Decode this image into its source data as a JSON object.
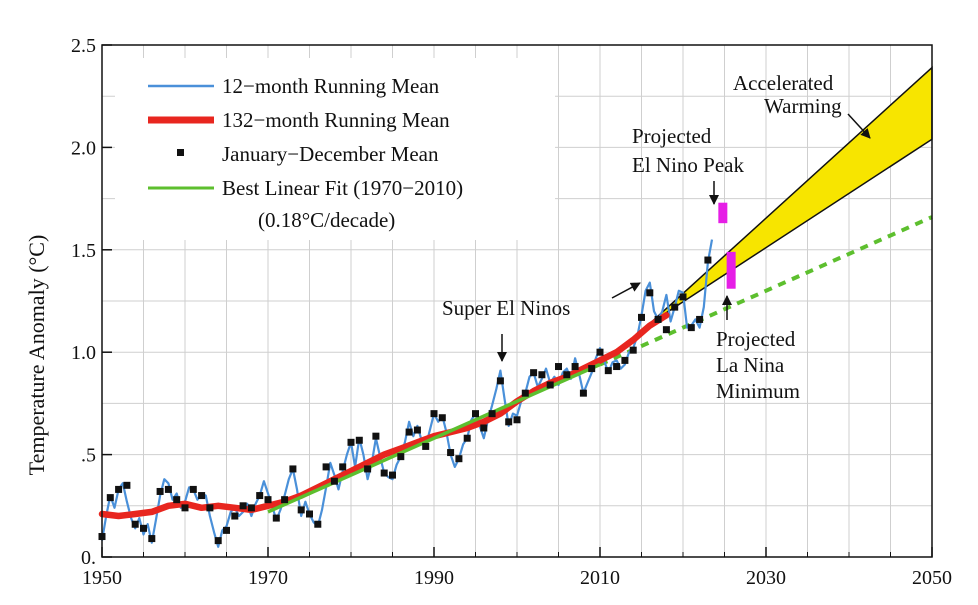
{
  "chart_data": {
    "type": "line",
    "ylabel": "Temperature Anomaly (°C)",
    "xlabel": "",
    "xlim": [
      1950,
      2050
    ],
    "ylim": [
      0,
      2.5
    ],
    "x_ticks": [
      1950,
      1970,
      1990,
      2010,
      2030,
      2050
    ],
    "x_tick_labels": [
      "1950",
      "1970",
      "1990",
      "2010",
      "2030",
      "2050"
    ],
    "y_ticks": [
      0,
      0.5,
      1.0,
      1.5,
      2.0,
      2.5
    ],
    "y_tick_labels": [
      "0.",
      ".5",
      "1.0",
      "1.5",
      "2.0",
      "2.5"
    ],
    "grid": true,
    "legend_position": "top-left",
    "colors": {
      "running12": "#4a90d9",
      "running132": "#e8261f",
      "annual": "#111111",
      "linear_fit": "#5dbf2e",
      "band_fill": "#f7e500",
      "marker": "#e61ee6"
    },
    "legend": [
      {
        "key": "running12",
        "label": "12−month Running Mean"
      },
      {
        "key": "running132",
        "label": "132−month Running Mean"
      },
      {
        "key": "annual",
        "label": "January−December Mean"
      },
      {
        "key": "linear_fit",
        "label": "Best Linear Fit (1970−2010)"
      }
    ],
    "legend_note": "(0.18°C/decade)",
    "series": [
      {
        "name": "12-month Running Mean",
        "key": "running12",
        "x": [
          1950,
          1950.5,
          1951,
          1951.5,
          1952,
          1952.5,
          1953,
          1953.5,
          1954,
          1954.5,
          1955,
          1955.5,
          1956,
          1956.5,
          1957,
          1957.5,
          1958,
          1958.5,
          1959,
          1959.5,
          1960,
          1960.5,
          1961,
          1961.5,
          1962,
          1962.5,
          1963,
          1963.5,
          1964,
          1964.5,
          1965,
          1965.5,
          1966,
          1966.5,
          1967,
          1967.5,
          1968,
          1968.5,
          1969,
          1969.5,
          1970,
          1970.5,
          1971,
          1971.5,
          1972,
          1972.5,
          1973,
          1973.5,
          1974,
          1974.5,
          1975,
          1975.5,
          1976,
          1976.5,
          1977,
          1977.5,
          1978,
          1978.5,
          1979,
          1979.5,
          1980,
          1980.5,
          1981,
          1981.5,
          1982,
          1982.5,
          1983,
          1983.5,
          1984,
          1984.5,
          1985,
          1985.5,
          1986,
          1986.5,
          1987,
          1987.5,
          1988,
          1988.5,
          1989,
          1989.5,
          1990,
          1990.5,
          1991,
          1991.5,
          1992,
          1992.5,
          1993,
          1993.5,
          1994,
          1994.5,
          1995,
          1995.5,
          1996,
          1996.5,
          1997,
          1997.5,
          1998,
          1998.5,
          1999,
          1999.5,
          2000,
          2000.5,
          2001,
          2001.5,
          2002,
          2002.5,
          2003,
          2003.5,
          2004,
          2004.5,
          2005,
          2005.5,
          2006,
          2006.5,
          2007,
          2007.5,
          2008,
          2008.5,
          2009,
          2009.5,
          2010,
          2010.5,
          2011,
          2011.5,
          2012,
          2012.5,
          2013,
          2013.5,
          2014,
          2014.5,
          2015,
          2015.5,
          2016,
          2016.5,
          2017,
          2017.5,
          2018,
          2018.5,
          2019,
          2019.5,
          2020,
          2020.5,
          2021,
          2021.5,
          2022,
          2022.5,
          2023,
          2023.5
        ],
        "values": [
          0.08,
          0.2,
          0.3,
          0.24,
          0.33,
          0.36,
          0.27,
          0.19,
          0.14,
          0.19,
          0.11,
          0.16,
          0.07,
          0.18,
          0.3,
          0.38,
          0.36,
          0.28,
          0.31,
          0.24,
          0.27,
          0.34,
          0.33,
          0.28,
          0.31,
          0.3,
          0.2,
          0.12,
          0.05,
          0.13,
          0.15,
          0.22,
          0.24,
          0.2,
          0.22,
          0.26,
          0.2,
          0.26,
          0.3,
          0.37,
          0.31,
          0.25,
          0.18,
          0.23,
          0.3,
          0.38,
          0.43,
          0.33,
          0.2,
          0.27,
          0.21,
          0.17,
          0.15,
          0.23,
          0.34,
          0.46,
          0.4,
          0.33,
          0.42,
          0.5,
          0.56,
          0.44,
          0.58,
          0.5,
          0.38,
          0.46,
          0.58,
          0.49,
          0.41,
          0.39,
          0.38,
          0.45,
          0.49,
          0.56,
          0.66,
          0.59,
          0.64,
          0.57,
          0.54,
          0.62,
          0.7,
          0.66,
          0.69,
          0.61,
          0.5,
          0.44,
          0.48,
          0.55,
          0.58,
          0.67,
          0.7,
          0.64,
          0.58,
          0.67,
          0.74,
          0.82,
          0.91,
          0.77,
          0.64,
          0.7,
          0.69,
          0.76,
          0.8,
          0.88,
          0.9,
          0.83,
          0.87,
          0.92,
          0.85,
          0.88,
          0.84,
          0.9,
          0.92,
          0.87,
          0.97,
          0.89,
          0.8,
          0.85,
          0.9,
          0.97,
          1.02,
          0.96,
          0.9,
          0.95,
          0.96,
          0.92,
          0.94,
          1.0,
          1.02,
          1.08,
          1.18,
          1.3,
          1.34,
          1.2,
          1.16,
          1.2,
          1.28,
          1.15,
          1.22,
          1.3,
          1.29,
          1.12,
          1.13,
          1.16,
          1.12,
          1.22,
          1.44,
          1.55
        ]
      },
      {
        "name": "132-month Running Mean",
        "key": "running132",
        "x": [
          1950,
          1952,
          1954,
          1956,
          1958,
          1960,
          1962,
          1964,
          1966,
          1968,
          1970,
          1972,
          1974,
          1976,
          1978,
          1980,
          1982,
          1984,
          1986,
          1988,
          1990,
          1992,
          1994,
          1996,
          1998,
          2000,
          2002,
          2004,
          2006,
          2008,
          2010,
          2012,
          2014,
          2016,
          2018
        ],
        "values": [
          0.21,
          0.2,
          0.21,
          0.22,
          0.25,
          0.26,
          0.24,
          0.25,
          0.24,
          0.23,
          0.25,
          0.27,
          0.3,
          0.34,
          0.38,
          0.42,
          0.46,
          0.5,
          0.53,
          0.56,
          0.59,
          0.61,
          0.63,
          0.66,
          0.7,
          0.76,
          0.81,
          0.85,
          0.88,
          0.92,
          0.96,
          1.0,
          1.06,
          1.13,
          1.18
        ]
      },
      {
        "name": "January-December Mean",
        "key": "annual",
        "x": [
          1950,
          1951,
          1952,
          1953,
          1954,
          1955,
          1956,
          1957,
          1958,
          1959,
          1960,
          1961,
          1962,
          1963,
          1964,
          1965,
          1966,
          1967,
          1968,
          1969,
          1970,
          1971,
          1972,
          1973,
          1974,
          1975,
          1976,
          1977,
          1978,
          1979,
          1980,
          1981,
          1982,
          1983,
          1984,
          1985,
          1986,
          1987,
          1988,
          1989,
          1990,
          1991,
          1992,
          1993,
          1994,
          1995,
          1996,
          1997,
          1998,
          1999,
          2000,
          2001,
          2002,
          2003,
          2004,
          2005,
          2006,
          2007,
          2008,
          2009,
          2010,
          2011,
          2012,
          2013,
          2014,
          2015,
          2016,
          2017,
          2018,
          2019,
          2020,
          2021,
          2022,
          2023
        ],
        "values": [
          0.1,
          0.29,
          0.33,
          0.35,
          0.16,
          0.14,
          0.09,
          0.32,
          0.33,
          0.28,
          0.24,
          0.33,
          0.3,
          0.24,
          0.08,
          0.13,
          0.2,
          0.25,
          0.24,
          0.3,
          0.28,
          0.19,
          0.28,
          0.43,
          0.23,
          0.21,
          0.16,
          0.44,
          0.37,
          0.44,
          0.56,
          0.57,
          0.43,
          0.59,
          0.41,
          0.4,
          0.49,
          0.61,
          0.62,
          0.54,
          0.7,
          0.68,
          0.51,
          0.48,
          0.58,
          0.7,
          0.63,
          0.7,
          0.86,
          0.66,
          0.67,
          0.8,
          0.9,
          0.89,
          0.84,
          0.93,
          0.89,
          0.93,
          0.8,
          0.92,
          1.0,
          0.91,
          0.93,
          0.96,
          1.01,
          1.17,
          1.29,
          1.16,
          1.11,
          1.22,
          1.27,
          1.12,
          1.16,
          1.45
        ]
      },
      {
        "name": "Best Linear Fit (1970-2010)",
        "key": "linear_fit",
        "x": [
          1970,
          2010
        ],
        "values": [
          0.22,
          0.94
        ]
      }
    ],
    "projection_linear": {
      "x": [
        2010,
        2050
      ],
      "values": [
        0.94,
        1.66
      ]
    },
    "accelerated_band": {
      "x": [
        2016,
        2050
      ],
      "upper": [
        1.14,
        2.39
      ],
      "lower": [
        1.14,
        2.04
      ]
    },
    "markers": [
      {
        "x": 2024.8,
        "ymin": 1.63,
        "ymax": 1.73
      },
      {
        "x": 2025.8,
        "ymin": 1.31,
        "ymax": 1.49
      }
    ],
    "annotations": {
      "super_el_ninos": "Super El Ninos",
      "el_nino_peak": [
        "Projected",
        "El Nino Peak"
      ],
      "la_nina_min": [
        "Projected",
        "La Nina",
        "Minimum"
      ],
      "accelerated": [
        "Accelerated",
        "Warming"
      ]
    }
  }
}
